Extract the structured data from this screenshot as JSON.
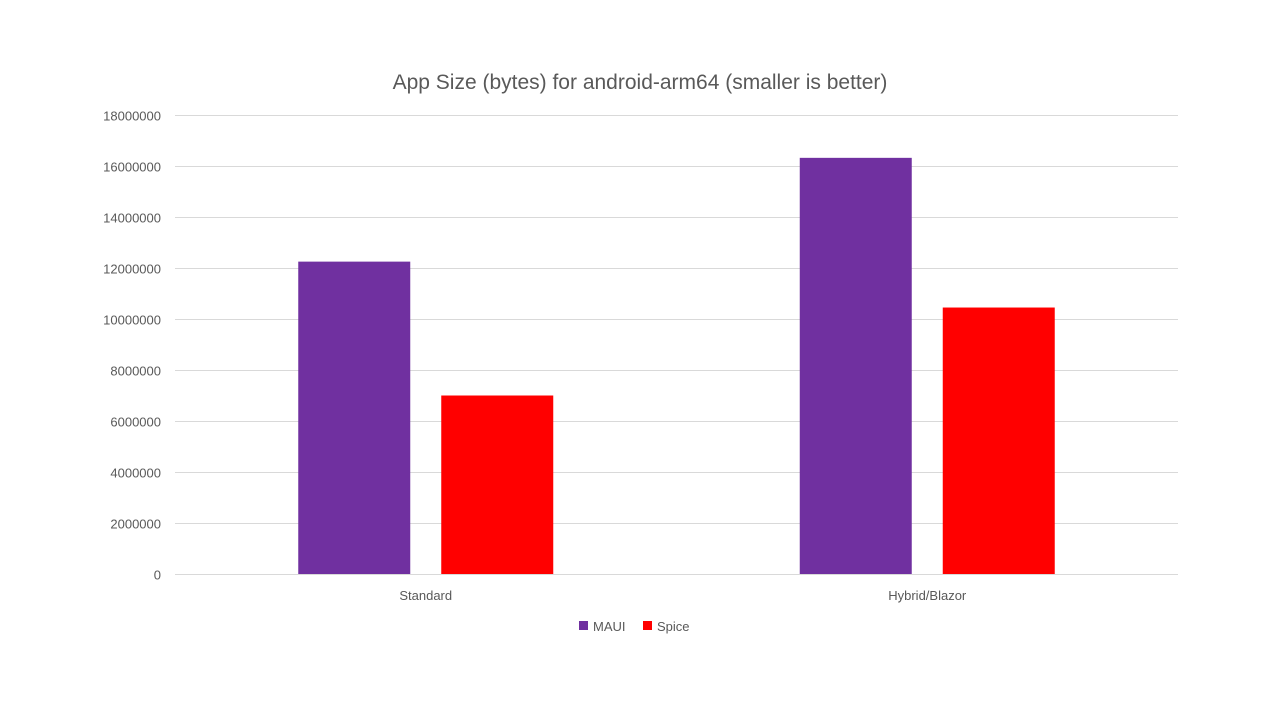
{
  "chart_data": {
    "type": "bar",
    "title": "App Size (bytes) for android-arm64 (smaller is better)",
    "categories": [
      "Standard",
      "Hybrid/Blazor"
    ],
    "series": [
      {
        "name": "MAUI",
        "color": "#7030a0",
        "values": [
          12250000,
          16320000
        ]
      },
      {
        "name": "Spice",
        "color": "#ff0000",
        "values": [
          7000000,
          10450000
        ]
      }
    ],
    "ylim": [
      0,
      18000000
    ],
    "yticks": [
      "0",
      "2000000",
      "4000000",
      "6000000",
      "8000000",
      "10000000",
      "12000000",
      "14000000",
      "16000000",
      "18000000"
    ],
    "grid": true,
    "legend_position": "bottom",
    "xlabel": "",
    "ylabel": ""
  }
}
